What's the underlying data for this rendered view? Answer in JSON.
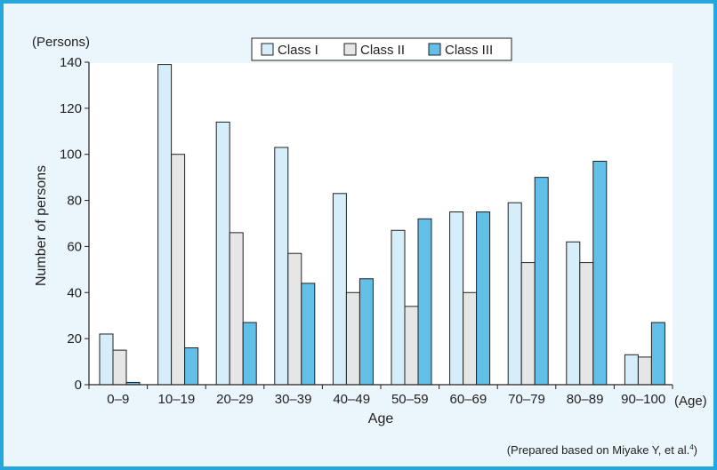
{
  "chart_data": {
    "type": "bar",
    "categories": [
      "0–9",
      "10–19",
      "20–29",
      "30–39",
      "40–49",
      "50–59",
      "60–69",
      "70–79",
      "80–89",
      "90–100"
    ],
    "series": [
      {
        "name": "Class I",
        "values": [
          22,
          139,
          114,
          103,
          83,
          67,
          75,
          79,
          62,
          13
        ],
        "color": "#d6eefa"
      },
      {
        "name": "Class II",
        "values": [
          15,
          100,
          66,
          57,
          40,
          34,
          40,
          53,
          53,
          12
        ],
        "color": "#e6e6e6"
      },
      {
        "name": "Class III",
        "values": [
          1,
          16,
          27,
          44,
          46,
          72,
          75,
          90,
          97,
          27
        ],
        "color": "#62bfe8"
      }
    ],
    "xlabel": "Age",
    "ylabel": "Number of persons",
    "x_unit": "(Age)",
    "y_unit": "(Persons)",
    "ylim": [
      0,
      140
    ],
    "yticks": [
      0,
      20,
      40,
      60,
      80,
      100,
      120,
      140
    ],
    "legend_placement": "top-center",
    "grid": false,
    "source_note": "(Prepared based on Miyake Y, et al.",
    "source_note_sup": "4",
    "source_note_end": ")"
  }
}
